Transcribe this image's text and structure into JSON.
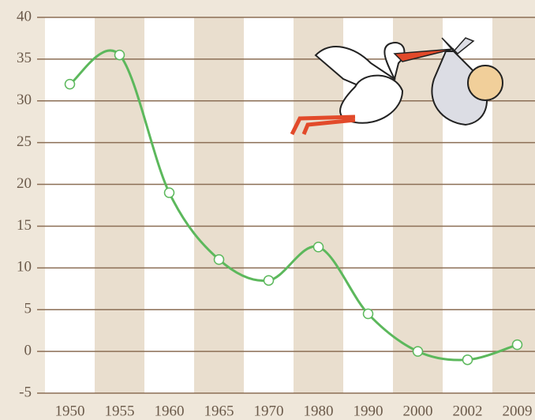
{
  "chart_data": {
    "type": "line",
    "categories": [
      "1950",
      "1955",
      "1960",
      "1965",
      "1970",
      "1980",
      "1990",
      "2000",
      "2002",
      "2009"
    ],
    "series": [
      {
        "color": "#5cb85c",
        "values": [
          32,
          35.5,
          19,
          11,
          8.5,
          12.5,
          4.5,
          0,
          -1,
          0.8
        ]
      }
    ],
    "ylim": [
      -5,
      40
    ],
    "yticks": [
      -5,
      0,
      5,
      10,
      15,
      20,
      25,
      30,
      35,
      40
    ],
    "grid": true
  }
}
